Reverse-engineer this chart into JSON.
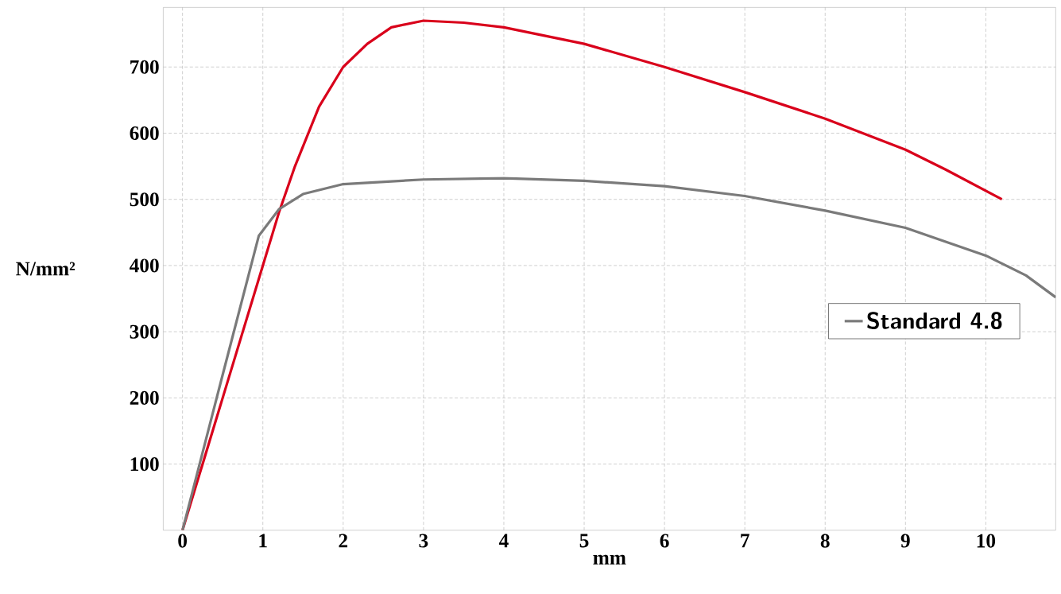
{
  "chart_data": {
    "type": "line",
    "xlabel": "mm",
    "ylabel": "N/mm²",
    "xlim": [
      -0.24,
      10.87
    ],
    "ylim": [
      0,
      790
    ],
    "xticks": [
      0,
      1,
      2,
      3,
      4,
      5,
      6,
      7,
      8,
      9,
      10
    ],
    "yticks": [
      100,
      200,
      300,
      400,
      500,
      600,
      700
    ],
    "grid": true,
    "legend": "right",
    "marker": "none",
    "line_style": "solid",
    "series": [
      {
        "color": "#d9001b",
        "x": [
          0,
          0.5,
          1,
          1.2,
          1.4,
          1.7,
          2,
          2.3,
          2.6,
          3,
          3.5,
          4,
          5,
          6,
          7,
          8,
          9,
          9.5,
          10.2
        ],
        "values": [
          0,
          200,
          400,
          480,
          550,
          640,
          700,
          735,
          760,
          770,
          767,
          760,
          735,
          700,
          662,
          622,
          575,
          545,
          500
        ]
      },
      {
        "name": "Standard 4.8",
        "color": "#7a7a7a",
        "x": [
          0,
          0.5,
          0.95,
          1.2,
          1.5,
          2,
          3,
          4,
          5,
          6,
          7,
          8,
          9,
          10,
          10.5,
          10.87
        ],
        "values": [
          0,
          235,
          445,
          485,
          508,
          523,
          530,
          532,
          528,
          520,
          505,
          483,
          457,
          415,
          385,
          352
        ]
      }
    ]
  }
}
